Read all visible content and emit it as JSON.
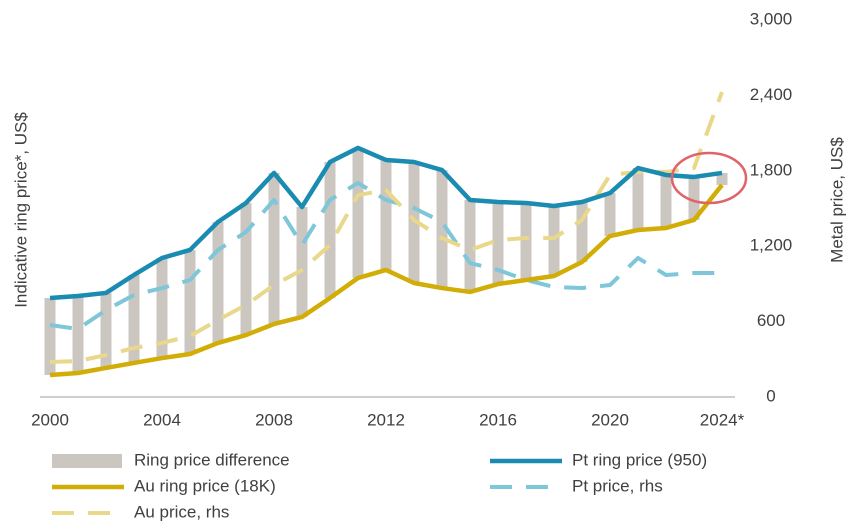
{
  "chart_data": {
    "type": "line",
    "y_label": "Indicative ring price*, US$",
    "y2_label": "Metal price, US$",
    "categories": [
      "2000",
      null,
      null,
      null,
      "2004",
      null,
      null,
      null,
      "2008",
      null,
      null,
      null,
      "2012",
      null,
      null,
      null,
      "2016",
      null,
      null,
      null,
      "2020",
      null,
      null,
      null,
      "2024*"
    ],
    "ylim": [
      0,
      3000
    ],
    "y2lim": [
      0,
      3000
    ],
    "y2ticks": [
      0,
      600,
      {
        "value": 1200,
        "label": "1,200"
      },
      {
        "value": 1800,
        "label": "1,800"
      },
      {
        "value": 2400,
        "label": "2,400"
      },
      {
        "value": 3000,
        "label": "3,000"
      }
    ],
    "series": [
      {
        "name": "Ring price difference",
        "type": "bar",
        "color": "#cbc6c0",
        "values": [
          613,
          613,
          597,
          700,
          796,
          828,
          963,
          1051,
          1202,
          875,
          1082,
          1035,
          875,
          963,
          939,
          732,
          653,
          613,
          557,
          478,
          342,
          493,
          422,
          342,
          96
        ]
      },
      {
        "name": "Pt ring price (950)",
        "type": "line",
        "color": "#1a8cb2",
        "values": [
          788,
          804,
          828,
          971,
          1106,
          1170,
          1393,
          1544,
          1783,
          1512,
          1870,
          1982,
          1886,
          1870,
          1806,
          1568,
          1552,
          1544,
          1520,
          1552,
          1623,
          1822,
          1767,
          1751,
          1783
        ]
      },
      {
        "name": "Au ring price (18K)",
        "type": "line",
        "color": "#d2ad06",
        "values": [
          175,
          191,
          231,
          271,
          310,
          342,
          430,
          493,
          581,
          637,
          788,
          947,
          1011,
          907,
          867,
          836,
          899,
          931,
          963,
          1074,
          1281,
          1329,
          1345,
          1409,
          1687
        ]
      },
      {
        "name": "Pt price, rhs",
        "type": "line",
        "dash": true,
        "axis": "y2",
        "color": "#7ec6d9",
        "values": [
          573,
          541,
          692,
          812,
          867,
          931,
          1170,
          1313,
          1568,
          1210,
          1568,
          1703,
          1568,
          1504,
          1393,
          1066,
          1011,
          931,
          875,
          867,
          891,
          1106,
          971,
          987,
          987
        ]
      },
      {
        "name": "Au price, rhs",
        "type": "line",
        "dash": true,
        "axis": "y2",
        "color": "#e9d78a",
        "values": [
          279,
          286,
          334,
          390,
          430,
          485,
          613,
          732,
          891,
          1011,
          1210,
          1607,
          1647,
          1409,
          1265,
          1170,
          1249,
          1265,
          1265,
          1409,
          1767,
          1791,
          1791,
          1822,
          2427
        ]
      }
    ]
  }
}
